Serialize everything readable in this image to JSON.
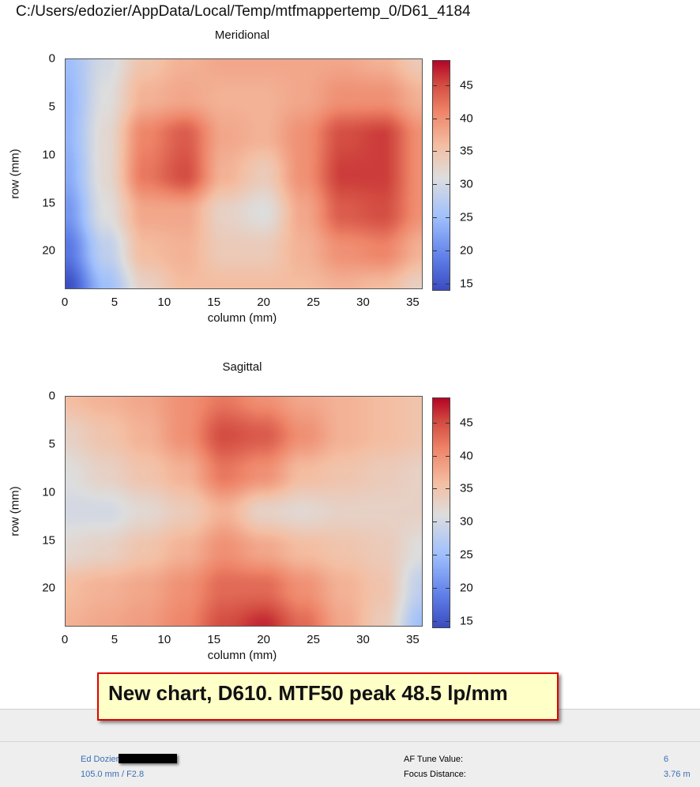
{
  "window_title": "C:/Users/edozier/AppData/Local/Temp/mtfmappertemp_0/D61_4184",
  "chart_data": [
    {
      "type": "heatmap",
      "title": "Meridional",
      "xlabel": "column (mm)",
      "ylabel": "row (mm)",
      "xlim": [
        0,
        36
      ],
      "ylim": [
        24,
        0
      ],
      "x_ticks": [
        "0",
        "5",
        "10",
        "15",
        "20",
        "25",
        "30",
        "35"
      ],
      "y_ticks": [
        "0",
        "5",
        "10",
        "15",
        "20"
      ],
      "colorbar": {
        "range": [
          13.9,
          48.8
        ],
        "ticks": [
          "15",
          "20",
          "25",
          "30",
          "35",
          "40",
          "45"
        ],
        "colormap": "coolwarm"
      },
      "grid_x": [
        0,
        4,
        8,
        12,
        16,
        20,
        24,
        28,
        32,
        36
      ],
      "grid_y": [
        0,
        4,
        8,
        12,
        16,
        20,
        24
      ],
      "values": [
        [
          25,
          30,
          35,
          37,
          38,
          38,
          38,
          38,
          37,
          34
        ],
        [
          24,
          31,
          37,
          38,
          37,
          37,
          38,
          40,
          40,
          37
        ],
        [
          24,
          32,
          41,
          44,
          38,
          37,
          40,
          45,
          46,
          40
        ],
        [
          23,
          32,
          42,
          45,
          37,
          34,
          40,
          46,
          46,
          40
        ],
        [
          21,
          31,
          38,
          38,
          33,
          31,
          38,
          44,
          45,
          40
        ],
        [
          18,
          28,
          36,
          37,
          34,
          34,
          37,
          40,
          41,
          37
        ],
        [
          14,
          25,
          33,
          36,
          36,
          36,
          36,
          37,
          36,
          33
        ]
      ]
    },
    {
      "type": "heatmap",
      "title": "Sagittal",
      "xlabel": "column (mm)",
      "ylabel": "row (mm)",
      "xlim": [
        0,
        36
      ],
      "ylim": [
        24,
        0
      ],
      "x_ticks": [
        "0",
        "5",
        "10",
        "15",
        "20",
        "25",
        "30",
        "35"
      ],
      "y_ticks": [
        "0",
        "5",
        "10",
        "15",
        "20"
      ],
      "colorbar": {
        "range": [
          13.9,
          48.8
        ],
        "ticks": [
          "15",
          "20",
          "25",
          "30",
          "35",
          "40",
          "45"
        ],
        "colormap": "coolwarm"
      },
      "grid_x": [
        0,
        4,
        8,
        12,
        16,
        20,
        24,
        28,
        32,
        36
      ],
      "grid_y": [
        0,
        4,
        8,
        12,
        16,
        20,
        24
      ],
      "values": [
        [
          36,
          37,
          38,
          40,
          42,
          40,
          38,
          37,
          36,
          35
        ],
        [
          33,
          35,
          37,
          40,
          45,
          44,
          40,
          37,
          36,
          35
        ],
        [
          31,
          33,
          35,
          37,
          42,
          40,
          36,
          35,
          34,
          33
        ],
        [
          30,
          30,
          32,
          34,
          37,
          33,
          32,
          33,
          33,
          33
        ],
        [
          32,
          33,
          35,
          37,
          40,
          38,
          36,
          35,
          34,
          31
        ],
        [
          36,
          37,
          38,
          40,
          43,
          43,
          40,
          37,
          35,
          28
        ],
        [
          37,
          38,
          39,
          41,
          45,
          47,
          43,
          38,
          34,
          25
        ]
      ]
    }
  ],
  "note": "New chart, D610. MTF50 peak 48.5 lp/mm",
  "footer": {
    "author": "Ed Dozier",
    "lens": "105.0 mm / F2.8",
    "af_tune_label": "AF Tune Value:",
    "af_tune_value": "6",
    "focus_label": "Focus Distance:",
    "focus_value": "3.76 m"
  },
  "colors": {
    "note_bg": "#ffffc8",
    "note_border": "#e00000",
    "link": "#3a6eb5"
  }
}
